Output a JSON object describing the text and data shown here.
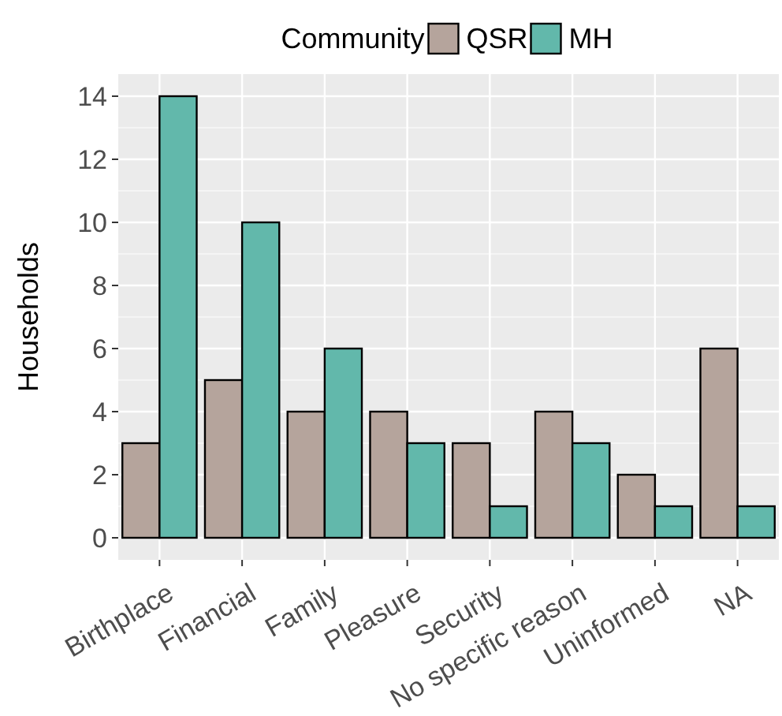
{
  "chart_data": {
    "type": "bar",
    "ylabel": "Households",
    "legend_title": "Community",
    "legend": "top",
    "categories": [
      "Birthplace",
      "Financial",
      "Family",
      "Pleasure",
      "Security",
      "No specific reason",
      "Uninformed",
      "NA"
    ],
    "series": [
      {
        "name": "QSR",
        "color": "#b5a49c",
        "values": [
          3,
          5,
          4,
          4,
          3,
          4,
          2,
          6
        ]
      },
      {
        "name": "MH",
        "color": "#62b8ab",
        "values": [
          14,
          10,
          6,
          3,
          1,
          3,
          1,
          1
        ]
      }
    ],
    "ylim": [
      -0.7,
      14.7
    ],
    "yticks": [
      0,
      2,
      4,
      6,
      8,
      10,
      12,
      14
    ],
    "grid": true
  }
}
